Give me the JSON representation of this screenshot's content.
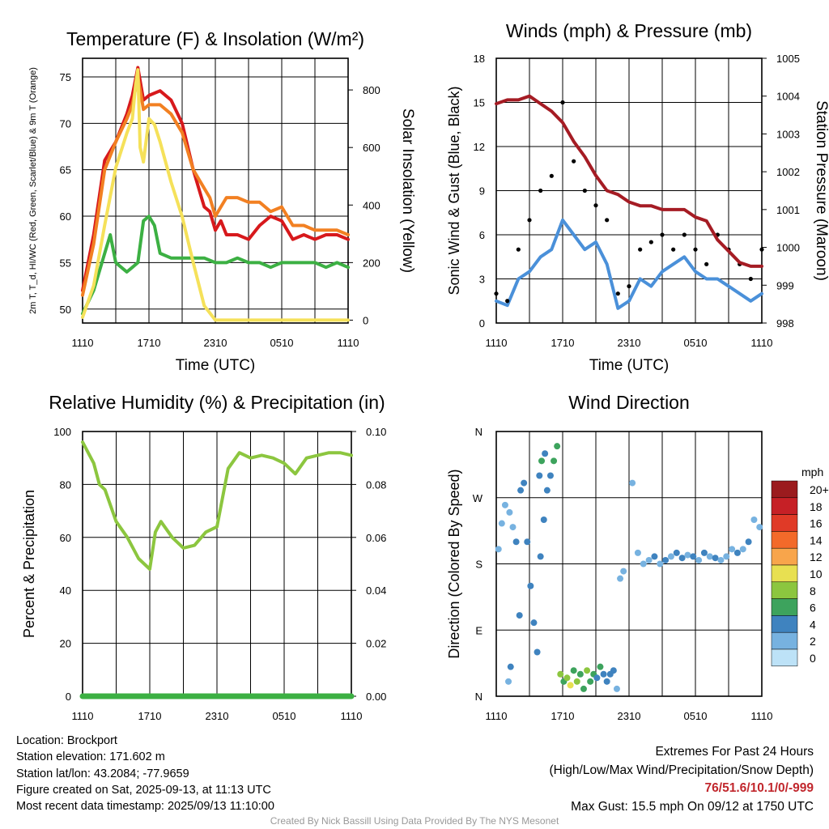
{
  "chart_data": [
    {
      "type": "line",
      "title": "Temperature (F) & Insolation (W/m²)",
      "xlabel": "Time (UTC)",
      "ylabel": "2m T, T_d, HI/WC (Red, Green, Scarlet/Blue) & 9m T (Orange)",
      "y2label": "Solar Insolation (Yellow)",
      "x_ticks": [
        "1110",
        "1710",
        "2310",
        "0510",
        "1110"
      ],
      "ylim": [
        48.5,
        77
      ],
      "y_ticks": [
        50,
        55,
        60,
        65,
        70,
        75
      ],
      "y2lim": [
        -10,
        910
      ],
      "y2_ticks": [
        0,
        200,
        400,
        600,
        800
      ],
      "grid": true,
      "series": [
        {
          "color": "#d7191c",
          "axis": "left",
          "x": [
            0,
            1,
            2,
            3,
            4,
            4.5,
            5,
            5.5,
            6,
            7,
            8,
            9,
            10,
            11,
            11.5,
            12,
            12.5,
            13,
            14,
            15,
            16,
            17,
            18,
            19,
            20,
            21,
            22,
            23,
            24
          ],
          "y": [
            52,
            58,
            66,
            68,
            71,
            73,
            76,
            72.5,
            73,
            73.5,
            72.5,
            70,
            65,
            61,
            60.5,
            58.5,
            59.5,
            58,
            58,
            57.5,
            59,
            60,
            59.5,
            57.5,
            58,
            57.5,
            58,
            58,
            57.5
          ]
        },
        {
          "color": "#f28022",
          "axis": "left",
          "x": [
            0,
            1,
            2,
            3,
            4,
            4.5,
            5,
            5.5,
            6,
            7,
            8,
            9,
            10,
            11,
            11.5,
            12,
            12.5,
            13,
            14,
            15,
            16,
            17,
            18,
            19,
            20,
            21,
            22,
            23,
            24
          ],
          "y": [
            51.5,
            57,
            65,
            68,
            70.5,
            72,
            75,
            71.5,
            72,
            72,
            71,
            69,
            65,
            63,
            62,
            60,
            61,
            62,
            62,
            61.5,
            61.5,
            60.5,
            61,
            59,
            59,
            58.5,
            58.5,
            58.5,
            58
          ]
        },
        {
          "color": "#3cb043",
          "axis": "left",
          "x": [
            0,
            1,
            2,
            2.5,
            3,
            3.5,
            4,
            4.5,
            5,
            5.5,
            6,
            6.5,
            7,
            8,
            9,
            10,
            11,
            12,
            13,
            14,
            15,
            16,
            17,
            18,
            19,
            20,
            21,
            22,
            23,
            24
          ],
          "y": [
            49.5,
            52,
            56,
            58,
            55,
            54.5,
            54,
            54.5,
            55,
            59.5,
            60,
            59,
            56,
            55.5,
            55.5,
            55.5,
            55.5,
            55,
            55,
            55.5,
            55,
            55,
            54.5,
            55,
            55,
            55,
            55,
            54.5,
            55,
            54.5
          ]
        },
        {
          "color": "#f5e15a",
          "axis": "right",
          "x": [
            0,
            1,
            2,
            3,
            4,
            4.5,
            4.8,
            5,
            5.2,
            5.5,
            6,
            6.5,
            7,
            8,
            9,
            10,
            11,
            12,
            14,
            16,
            18,
            20,
            22,
            24
          ],
          "y": [
            10,
            120,
            330,
            530,
            650,
            700,
            820,
            870,
            600,
            550,
            700,
            680,
            620,
            480,
            360,
            200,
            50,
            0,
            0,
            0,
            0,
            0,
            0,
            0
          ]
        }
      ]
    },
    {
      "type": "line",
      "title": "Winds (mph) & Pressure (mb)",
      "xlabel": "Time (UTC)",
      "ylabel": "Sonic Wind & Gust (Blue, Black)",
      "y2label": "Station Pressure (Maroon)",
      "x_ticks": [
        "1110",
        "1710",
        "2310",
        "0510",
        "1110"
      ],
      "ylim": [
        0,
        18
      ],
      "y_ticks": [
        0,
        3,
        6,
        9,
        12,
        15,
        18
      ],
      "y2lim": [
        998,
        1005
      ],
      "y2_ticks": [
        998,
        999,
        1000,
        1001,
        1002,
        1003,
        1004,
        1005
      ],
      "grid": true,
      "series": [
        {
          "color": "#4a90d9",
          "axis": "left",
          "x": [
            0,
            1,
            2,
            3,
            4,
            5,
            6,
            7,
            8,
            9,
            10,
            11,
            12,
            13,
            14,
            15,
            16,
            17,
            18,
            19,
            20,
            21,
            22,
            23,
            24
          ],
          "y": [
            1.5,
            1.2,
            3,
            3.5,
            4.5,
            5,
            7,
            6,
            5,
            5.5,
            4,
            1,
            1.5,
            3,
            2.5,
            3.5,
            4,
            4.5,
            3.5,
            3,
            3,
            2.5,
            2,
            1.5,
            2
          ]
        },
        {
          "color": "#000000",
          "axis": "left",
          "markers": "points",
          "x": [
            0,
            1,
            2,
            3,
            4,
            5,
            6,
            7,
            8,
            9,
            10,
            11,
            12,
            13,
            14,
            15,
            16,
            17,
            18,
            19,
            20,
            21,
            22,
            23,
            24
          ],
          "y": [
            2,
            1.5,
            5,
            7,
            9,
            10,
            15,
            11,
            9,
            8,
            7,
            2,
            2.5,
            5,
            5.5,
            6,
            5,
            6,
            5,
            4,
            6,
            5,
            4,
            3,
            5
          ]
        },
        {
          "color": "#a51c24",
          "axis": "right",
          "x": [
            0,
            1,
            2,
            3,
            4,
            5,
            6,
            7,
            8,
            9,
            10,
            11,
            12,
            13,
            14,
            15,
            16,
            17,
            18,
            19,
            20,
            21,
            22,
            23,
            24
          ],
          "y": [
            1003.8,
            1003.9,
            1003.9,
            1004.0,
            1003.8,
            1003.6,
            1003.3,
            1002.8,
            1002.4,
            1001.9,
            1001.5,
            1001.4,
            1001.2,
            1001.1,
            1001.1,
            1001.0,
            1001.0,
            1001.0,
            1000.8,
            1000.7,
            1000.2,
            999.9,
            999.6,
            999.5,
            999.5
          ]
        }
      ]
    },
    {
      "type": "line",
      "title": "Relative Humidity (%) & Precipitation (in)",
      "xlabel": "",
      "ylabel": "Percent & Precipitation",
      "x_ticks": [
        "1110",
        "1710",
        "2310",
        "0510",
        "1110"
      ],
      "ylim": [
        0,
        100
      ],
      "y_ticks": [
        0,
        20,
        40,
        60,
        80,
        100
      ],
      "y2lim": [
        0,
        0.1
      ],
      "y2_ticks": [
        "0.00",
        "0.02",
        "0.04",
        "0.06",
        "0.08",
        "0.10"
      ],
      "grid": true,
      "series": [
        {
          "color": "#8cc63f",
          "axis": "left",
          "x": [
            0,
            1,
            1.5,
            2,
            3,
            4,
            5,
            5.5,
            6,
            6.5,
            7,
            8,
            9,
            10,
            11,
            12,
            13,
            14,
            15,
            16,
            17,
            18,
            19,
            20,
            21,
            22,
            23,
            24
          ],
          "y": [
            96,
            88,
            80,
            78,
            66,
            60,
            52,
            50,
            48,
            62,
            66,
            60,
            56,
            57,
            62,
            64,
            86,
            92,
            90,
            91,
            90,
            88,
            84,
            90,
            91,
            92,
            92,
            91
          ]
        },
        {
          "color": "#3cb043",
          "axis": "right",
          "x": [
            0,
            24
          ],
          "y": [
            0,
            0
          ]
        }
      ]
    },
    {
      "type": "scatter",
      "title": "Wind Direction",
      "xlabel": "",
      "ylabel": "Direction (Colored By Speed)",
      "x_ticks": [
        "1110",
        "1710",
        "2310",
        "0510",
        "1110"
      ],
      "y_ticks": [
        "N",
        "E",
        "S",
        "W",
        "N"
      ],
      "ylim": [
        0,
        360
      ],
      "grid": true,
      "legend": {
        "title": "mph",
        "position": "right",
        "labels": [
          "20+",
          "18",
          "16",
          "14",
          "12",
          "10",
          "8",
          "6",
          "4",
          "2",
          "0"
        ],
        "colors": [
          "#9b1b1e",
          "#c62026",
          "#e03a27",
          "#f36a2a",
          "#f8a54b",
          "#e8e051",
          "#8cc63f",
          "#3da35d",
          "#3f83bf",
          "#77b2e0",
          "#bde2f7"
        ]
      },
      "x": [
        0.2,
        0.5,
        0.8,
        1.2,
        1.5,
        1.8,
        2.2,
        2.5,
        2.8,
        3.1,
        3.4,
        3.7,
        4.0,
        4.3,
        4.6,
        4.9,
        5.2,
        5.5,
        5.8,
        6.1,
        6.4,
        6.7,
        7.0,
        7.3,
        7.6,
        7.9,
        8.2,
        8.5,
        8.8,
        9.1,
        9.4,
        9.7,
        10.0,
        10.3,
        10.6,
        10.9,
        11.2,
        11.5,
        12.3,
        12.8,
        13.3,
        13.8,
        14.3,
        14.8,
        15.3,
        15.8,
        16.3,
        16.8,
        17.3,
        17.8,
        18.3,
        18.8,
        19.3,
        19.8,
        20.3,
        20.8,
        21.3,
        21.8,
        22.3,
        22.8,
        23.3,
        23.8,
        3.9,
        4.1,
        4.4,
        1.1,
        1.3,
        2.1
      ],
      "y": [
        200,
        235,
        260,
        250,
        230,
        210,
        280,
        290,
        210,
        150,
        100,
        60,
        190,
        240,
        280,
        300,
        320,
        340,
        30,
        20,
        25,
        15,
        35,
        20,
        30,
        10,
        35,
        20,
        30,
        25,
        40,
        30,
        20,
        30,
        35,
        10,
        160,
        170,
        290,
        195,
        180,
        185,
        190,
        180,
        185,
        190,
        195,
        188,
        192,
        190,
        185,
        195,
        190,
        188,
        185,
        190,
        200,
        195,
        200,
        210,
        240,
        230,
        300,
        320,
        330,
        20,
        40,
        110
      ],
      "speeds": [
        1,
        2,
        1,
        2,
        1,
        3,
        3,
        4,
        3,
        3,
        4,
        4,
        4,
        3,
        4,
        4,
        5,
        6,
        7,
        6,
        8,
        9,
        6,
        7,
        5,
        6,
        7,
        5,
        6,
        4,
        5,
        3,
        4,
        3,
        4,
        2,
        2,
        2,
        1,
        2,
        2,
        2,
        3,
        2,
        3,
        2,
        3,
        3,
        2,
        4,
        2,
        3,
        2,
        3,
        2,
        2,
        2,
        3,
        2,
        3,
        1,
        2,
        4,
        5,
        4,
        1,
        3,
        4
      ]
    }
  ],
  "info": {
    "location": "Location: Brockport",
    "elevation": "Station elevation: 171.602 m",
    "latlon": "Station lat/lon: 43.2084; -77.9659",
    "created": "Figure created on Sat, 2025-09-13, at 11:13 UTC",
    "recent": "Most recent data timestamp: 2025/09/13 11:10:00"
  },
  "extremes": {
    "title": "Extremes For Past 24 Hours",
    "subtitle": "(High/Low/Max Wind/Precipitation/Snow Depth)",
    "values": "76/51.6/10.1/0/-999",
    "gust": "Max Gust: 15.5 mph On 09/12 at 1750 UTC"
  },
  "credit": "Created By Nick Bassill Using Data Provided By The NYS Mesonet"
}
